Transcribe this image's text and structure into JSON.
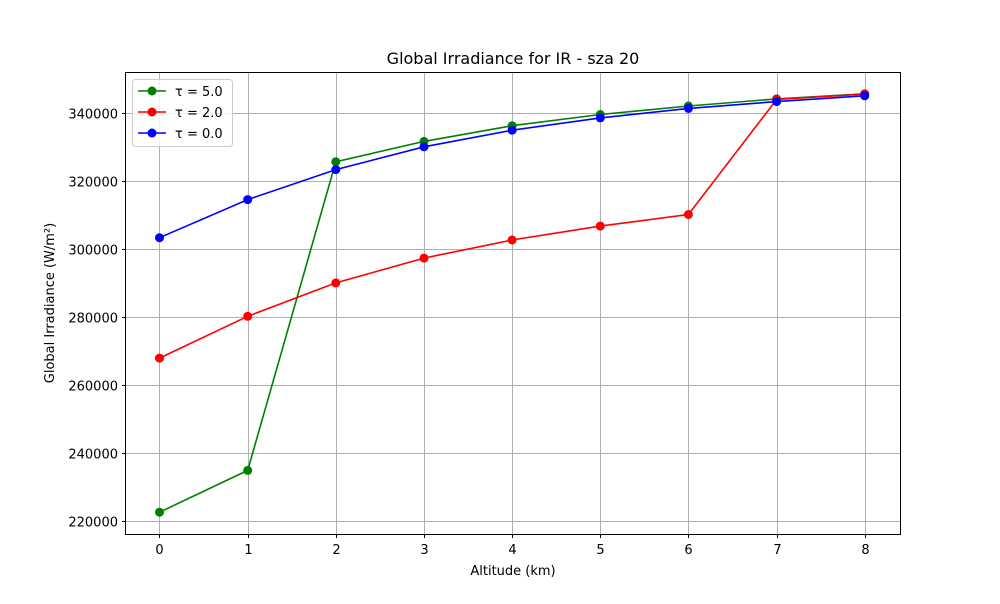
{
  "chart_data": {
    "type": "line",
    "title": "Global Irradiance for IR - sza 20",
    "xlabel": "Altitude (km)",
    "ylabel": "Global Irradiance (W/m²)",
    "x": [
      0,
      1,
      2,
      3,
      4,
      5,
      6,
      7,
      8
    ],
    "xticks": [
      "0",
      "1",
      "2",
      "3",
      "4",
      "5",
      "6",
      "7",
      "8"
    ],
    "yticks": [
      220000,
      240000,
      260000,
      280000,
      300000,
      320000,
      340000
    ],
    "ytick_labels": [
      "220000",
      "240000",
      "260000",
      "280000",
      "300000",
      "320000",
      "340000"
    ],
    "xlim": [
      -0.38,
      8.4
    ],
    "ylim": [
      216200,
      351700
    ],
    "grid": true,
    "legend_position": "upper-left",
    "markers": "circle",
    "series": [
      {
        "name": "τ = 5.0",
        "color": "#008000",
        "values": [
          222600,
          234900,
          325600,
          331600,
          336200,
          339500,
          342000,
          344100,
          345600
        ]
      },
      {
        "name": "τ = 2.0",
        "color": "#ff0000",
        "values": [
          267900,
          280200,
          290000,
          297300,
          302600,
          306700,
          310100,
          343900,
          345500
        ]
      },
      {
        "name": "τ = 0.0",
        "color": "#0000ff",
        "values": [
          303300,
          314500,
          323300,
          330000,
          334900,
          338500,
          341300,
          343300,
          345000
        ]
      }
    ]
  }
}
